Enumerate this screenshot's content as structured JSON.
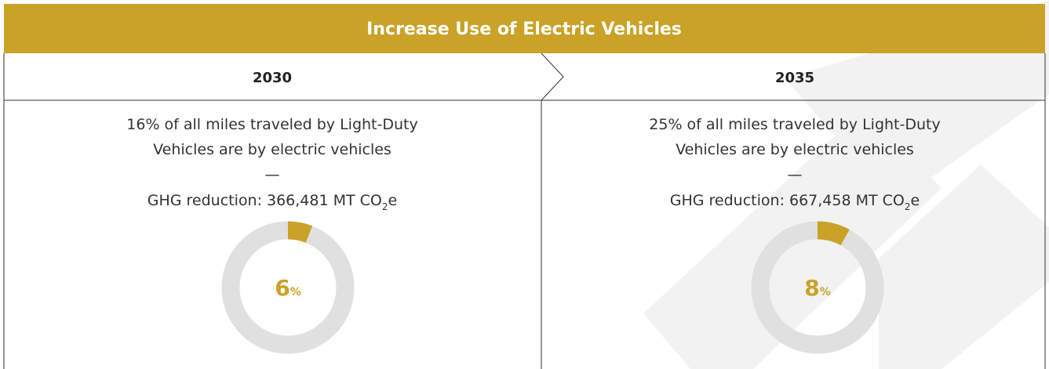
{
  "header": {
    "title": "Increase Use of Electric Vehicles"
  },
  "columns": [
    {
      "year": "2030",
      "description": [
        "16% of all miles traveled by Light-Duty",
        "Vehicles are by electric vehicles"
      ],
      "separator": "—",
      "reduction": {
        "text": "GHG reduction: 366,481 MT CO",
        "subscript": "2",
        "suffix": "e"
      },
      "donut": {
        "value": 6,
        "unit": "%"
      }
    },
    {
      "year": "2035",
      "description": [
        "25% of all miles traveled by Light-Duty",
        "Vehicles are by electric vehicles"
      ],
      "separator": "—",
      "reduction": {
        "text": "GHG reduction: 667,458 MT CO",
        "subscript": "2",
        "suffix": "e"
      },
      "donut": {
        "value": 8,
        "unit": "%"
      }
    }
  ]
}
